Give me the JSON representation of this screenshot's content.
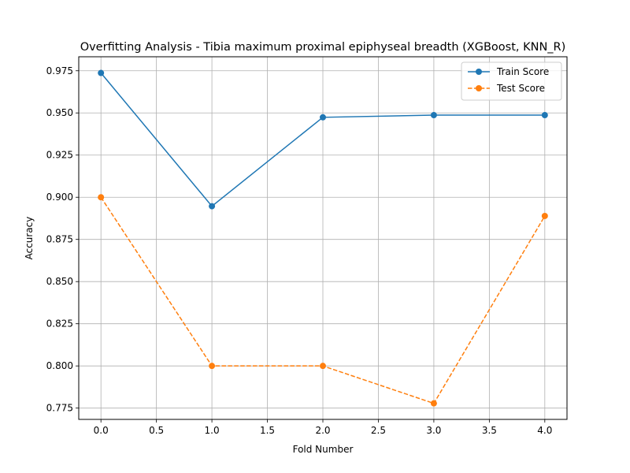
{
  "chart_data": {
    "type": "line",
    "title": "Overfitting Analysis - Tibia maximum proximal epiphyseal breadth (XGBoost, KNN_R)",
    "xlabel": "Fold Number",
    "ylabel": "Accuracy",
    "x": [
      0,
      1,
      2,
      3,
      4
    ],
    "xlim": [
      -0.2,
      4.2
    ],
    "ylim": [
      0.7683,
      0.9833
    ],
    "xticks": [
      "0.0",
      "0.5",
      "1.0",
      "1.5",
      "2.0",
      "2.5",
      "3.0",
      "3.5",
      "4.0"
    ],
    "yticks": [
      "0.775",
      "0.800",
      "0.825",
      "0.850",
      "0.875",
      "0.900",
      "0.925",
      "0.950",
      "0.975"
    ],
    "grid": true,
    "legend_position": "top-right",
    "series": [
      {
        "name": "Train Score",
        "values": [
          0.9737,
          0.8947,
          0.9474,
          0.9487,
          0.9487
        ],
        "color": "#1f77b4",
        "style": "solid",
        "marker": "circle"
      },
      {
        "name": "Test Score",
        "values": [
          0.9,
          0.8,
          0.8,
          0.7778,
          0.8889
        ],
        "color": "#ff7f0e",
        "style": "dashed",
        "marker": "circle"
      }
    ]
  }
}
